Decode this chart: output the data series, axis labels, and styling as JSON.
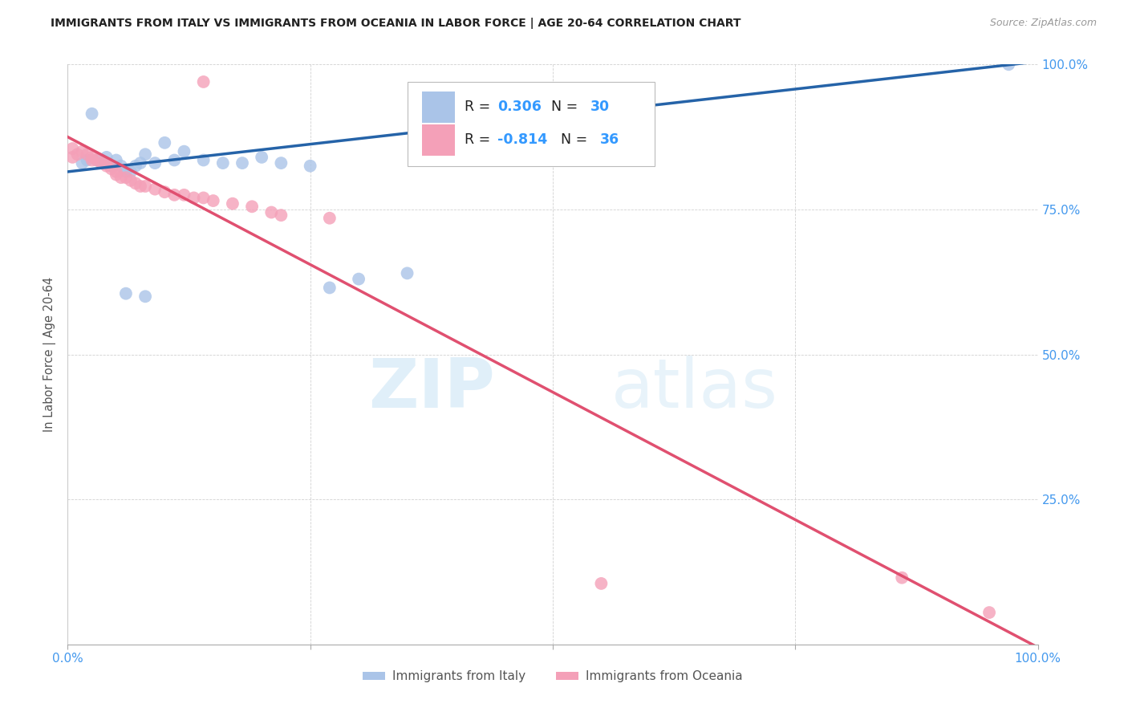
{
  "title": "IMMIGRANTS FROM ITALY VS IMMIGRANTS FROM OCEANIA IN LABOR FORCE | AGE 20-64 CORRELATION CHART",
  "source": "Source: ZipAtlas.com",
  "ylabel": "In Labor Force | Age 20-64",
  "xlim": [
    0.0,
    1.0
  ],
  "ylim": [
    0.0,
    1.0
  ],
  "xticks": [
    0.0,
    0.25,
    0.5,
    0.75,
    1.0
  ],
  "yticks": [
    0.0,
    0.25,
    0.5,
    0.75,
    1.0
  ],
  "xticklabels": [
    "0.0%",
    "",
    "",
    "",
    "100.0%"
  ],
  "yticklabels_right": [
    "",
    "25.0%",
    "50.0%",
    "75.0%",
    "100.0%"
  ],
  "italy_color": "#aac4e8",
  "oceania_color": "#f4a0b8",
  "italy_line_color": "#2563a8",
  "oceania_line_color": "#e05070",
  "R_italy": 0.306,
  "N_italy": 30,
  "R_oceania": -0.814,
  "N_oceania": 36,
  "legend_label_italy": "Immigrants from Italy",
  "legend_label_oceania": "Immigrants from Oceania",
  "watermark_zip": "ZIP",
  "watermark_atlas": "atlas",
  "background_color": "#ffffff",
  "tick_color": "#4499ee",
  "italy_scatter": [
    [
      0.015,
      0.83
    ],
    [
      0.02,
      0.835
    ],
    [
      0.025,
      0.915
    ],
    [
      0.03,
      0.835
    ],
    [
      0.035,
      0.83
    ],
    [
      0.04,
      0.84
    ],
    [
      0.045,
      0.825
    ],
    [
      0.05,
      0.835
    ],
    [
      0.055,
      0.825
    ],
    [
      0.06,
      0.815
    ],
    [
      0.065,
      0.815
    ],
    [
      0.07,
      0.825
    ],
    [
      0.075,
      0.83
    ],
    [
      0.08,
      0.845
    ],
    [
      0.09,
      0.83
    ],
    [
      0.1,
      0.865
    ],
    [
      0.11,
      0.835
    ],
    [
      0.12,
      0.85
    ],
    [
      0.14,
      0.835
    ],
    [
      0.16,
      0.83
    ],
    [
      0.18,
      0.83
    ],
    [
      0.2,
      0.84
    ],
    [
      0.22,
      0.83
    ],
    [
      0.25,
      0.825
    ],
    [
      0.27,
      0.615
    ],
    [
      0.3,
      0.63
    ],
    [
      0.06,
      0.605
    ],
    [
      0.08,
      0.6
    ],
    [
      0.35,
      0.64
    ],
    [
      0.97,
      1.0
    ]
  ],
  "oceania_scatter": [
    [
      0.005,
      0.84
    ],
    [
      0.01,
      0.845
    ],
    [
      0.015,
      0.85
    ],
    [
      0.02,
      0.845
    ],
    [
      0.025,
      0.84
    ],
    [
      0.025,
      0.835
    ],
    [
      0.03,
      0.835
    ],
    [
      0.035,
      0.83
    ],
    [
      0.04,
      0.83
    ],
    [
      0.04,
      0.825
    ],
    [
      0.045,
      0.82
    ],
    [
      0.05,
      0.815
    ],
    [
      0.05,
      0.81
    ],
    [
      0.055,
      0.805
    ],
    [
      0.06,
      0.805
    ],
    [
      0.065,
      0.8
    ],
    [
      0.07,
      0.795
    ],
    [
      0.075,
      0.79
    ],
    [
      0.08,
      0.79
    ],
    [
      0.09,
      0.785
    ],
    [
      0.1,
      0.78
    ],
    [
      0.11,
      0.775
    ],
    [
      0.12,
      0.775
    ],
    [
      0.13,
      0.77
    ],
    [
      0.14,
      0.77
    ],
    [
      0.15,
      0.765
    ],
    [
      0.17,
      0.76
    ],
    [
      0.19,
      0.755
    ],
    [
      0.21,
      0.745
    ],
    [
      0.14,
      0.97
    ],
    [
      0.22,
      0.74
    ],
    [
      0.27,
      0.735
    ],
    [
      0.55,
      0.105
    ],
    [
      0.86,
      0.115
    ],
    [
      0.95,
      0.055
    ],
    [
      0.005,
      0.855
    ]
  ],
  "italy_trend_x": [
    0.0,
    1.0
  ],
  "italy_trend_y": [
    0.815,
    1.005
  ],
  "oceania_trend_x": [
    0.0,
    1.0
  ],
  "oceania_trend_y": [
    0.875,
    -0.005
  ]
}
